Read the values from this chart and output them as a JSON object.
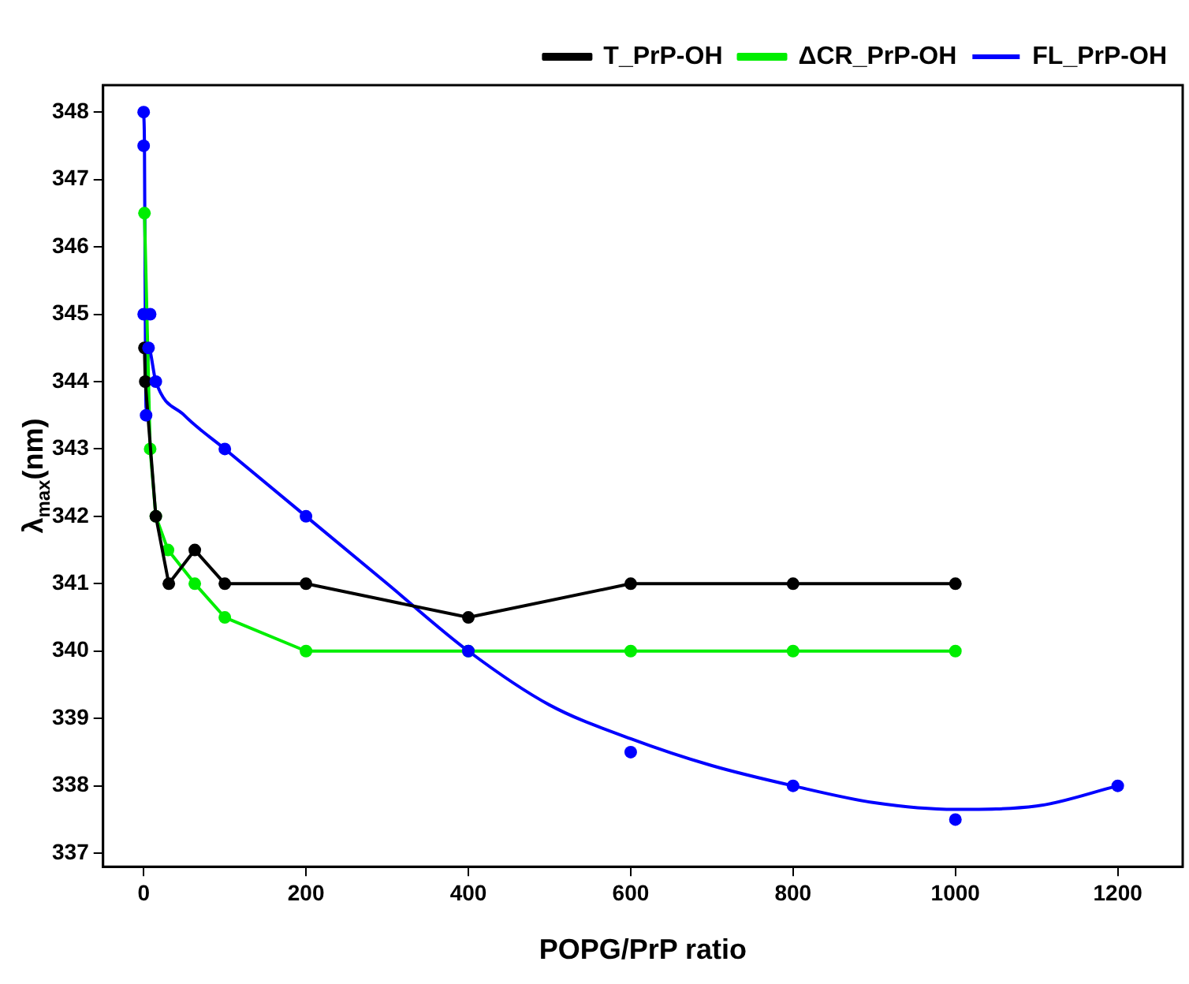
{
  "chart_data": {
    "type": "line",
    "xlabel": "POPG/PrP ratio",
    "ylabel": "λ$_{max}$(nm)",
    "xlim": [
      -50,
      1280
    ],
    "xticks": [
      0,
      200,
      400,
      600,
      800,
      1000,
      1200
    ],
    "ylim": [
      336.8,
      348.4
    ],
    "yticks": [
      337,
      338,
      339,
      340,
      341,
      342,
      343,
      344,
      345,
      346,
      347,
      348
    ],
    "grid": false,
    "legend": "top right",
    "marker": "circle",
    "line_style": "solid",
    "series": [
      {
        "name": "T_PrP-OH",
        "color": "#000000",
        "x": [
          1,
          2,
          15,
          31,
          63,
          100,
          200,
          400,
          600,
          800,
          1000
        ],
        "values": [
          344.5,
          344,
          342,
          341,
          341.5,
          341,
          341,
          340.5,
          341,
          341,
          341
        ]
      },
      {
        "name": "ΔCR_PrP-OH",
        "color": "#00ee00",
        "x": [
          1,
          8,
          15,
          30,
          63,
          100,
          200,
          400,
          600,
          800,
          1000
        ],
        "values": [
          346.5,
          343,
          342,
          341.5,
          341,
          340.5,
          340,
          340,
          340,
          340,
          340
        ]
      },
      {
        "name": "FL_PrP-OH",
        "type": "scatter",
        "color": "#0000ff",
        "x": [
          0,
          0,
          0,
          3,
          6,
          8,
          15,
          100,
          200,
          400,
          600,
          800,
          1000,
          1200
        ],
        "values": [
          348,
          347.5,
          345,
          343.5,
          344.5,
          345,
          344,
          343,
          342,
          340,
          338.5,
          338,
          337.5,
          338
        ]
      },
      {
        "type": "line",
        "marker": "none",
        "color": "#0000ff",
        "x": [
          0,
          1,
          2,
          3,
          6,
          15,
          50,
          100,
          200,
          300,
          400,
          500,
          600,
          700,
          800,
          900,
          1000,
          1100,
          1200
        ],
        "values": [
          348,
          347.5,
          345,
          343.6,
          344.5,
          344,
          343.5,
          343,
          342,
          341,
          340,
          339.2,
          338.7,
          338.3,
          338,
          337.75,
          337.65,
          337.7,
          338
        ]
      }
    ]
  }
}
